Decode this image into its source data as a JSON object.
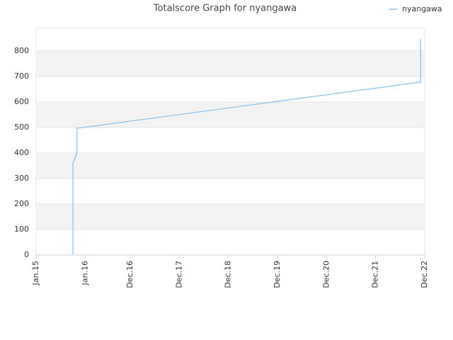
{
  "chart_data": {
    "type": "line",
    "title": "Totalscore Graph for nyangawa",
    "x": [
      "2015-10",
      "2015-10",
      "2015-10",
      "2015-11",
      "2015-11",
      "2022-11",
      "2022-11"
    ],
    "series": [
      {
        "name": "nyangawa",
        "color": "#8fc3ea",
        "values": [
          0,
          260,
          360,
          400,
          497,
          678,
          848
        ]
      }
    ],
    "xlim": [
      "2015-01",
      "2022-12"
    ],
    "xticks": [
      {
        "value": "2015-01",
        "label": "Jan.15"
      },
      {
        "value": "2016-01",
        "label": "Jan.16"
      },
      {
        "value": "2016-12",
        "label": "Dec.16"
      },
      {
        "value": "2017-12",
        "label": "Dec.17"
      },
      {
        "value": "2018-12",
        "label": "Dec.18"
      },
      {
        "value": "2019-12",
        "label": "Dec.19"
      },
      {
        "value": "2020-12",
        "label": "Dec.20"
      },
      {
        "value": "2021-12",
        "label": "Dec.21"
      },
      {
        "value": "2022-12",
        "label": "Dec.22"
      }
    ],
    "ylim": [
      0,
      889
    ],
    "yticks": [
      0,
      100,
      200,
      300,
      400,
      500,
      600,
      700,
      800
    ],
    "grid": true,
    "legend": "top-right"
  }
}
